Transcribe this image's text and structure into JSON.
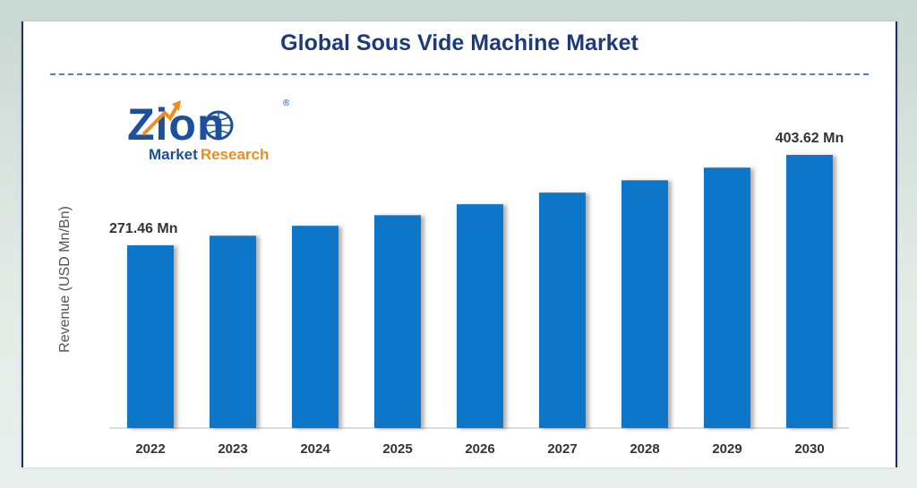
{
  "logo": {
    "brand_top": "Zion",
    "brand_bottom_left": "Market",
    "brand_bottom_right": "Research",
    "brand_mark": "®"
  },
  "chart_data": {
    "type": "bar",
    "title": "Global Sous Vide Machine Market",
    "xlabel": "",
    "ylabel": "Revenue (USD Mn/Bn)",
    "categories": [
      "2022",
      "2023",
      "2024",
      "2025",
      "2026",
      "2027",
      "2028",
      "2029",
      "2030"
    ],
    "values": [
      271.46,
      285.5,
      300.0,
      315.5,
      331.5,
      348.5,
      366.5,
      385.0,
      403.62
    ],
    "data_labels": {
      "first": "271.46 Mn",
      "last": "403.62 Mn"
    },
    "ylim": [
      0,
      403.62
    ],
    "grid": false,
    "bar_color": "#0b76c8"
  }
}
